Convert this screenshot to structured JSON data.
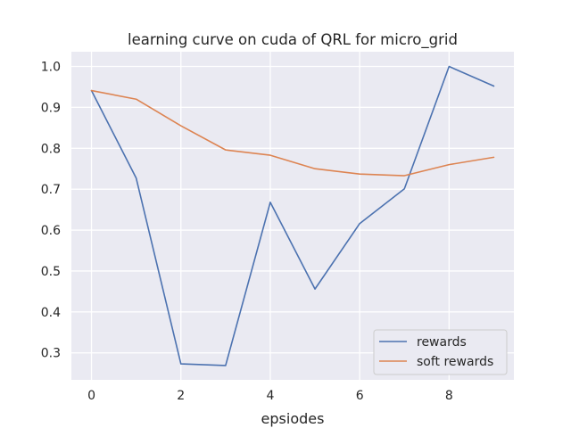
{
  "chart_data": {
    "type": "line",
    "title": "learning curve on cuda of QRL for micro_grid",
    "xlabel": "epsiodes",
    "ylabel": "",
    "x": [
      0,
      1,
      2,
      3,
      4,
      5,
      6,
      7,
      8,
      9
    ],
    "xticks": [
      0,
      2,
      4,
      6,
      8
    ],
    "yticks": [
      0.3,
      0.4,
      0.5,
      0.6,
      0.7,
      0.8,
      0.9,
      1.0
    ],
    "ytick_labels": [
      "0.3",
      "0.4",
      "0.5",
      "0.6",
      "0.7",
      "0.8",
      "0.9",
      "1.0"
    ],
    "xlim": [
      -0.45,
      9.45
    ],
    "ylim": [
      0.234,
      1.036
    ],
    "grid": true,
    "legend_position": "lower-right",
    "series": [
      {
        "name": "rewards",
        "color": "#4c72b0",
        "values": [
          0.941,
          0.727,
          0.273,
          0.269,
          0.668,
          0.456,
          0.616,
          0.701,
          1.0,
          0.952
        ]
      },
      {
        "name": "soft rewards",
        "color": "#dd8452",
        "values": [
          0.941,
          0.92,
          0.855,
          0.796,
          0.783,
          0.75,
          0.737,
          0.733,
          0.76,
          0.778
        ]
      }
    ]
  }
}
